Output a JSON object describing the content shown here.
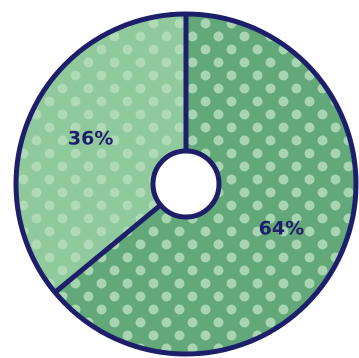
{
  "chart_data": {
    "type": "pie",
    "donut": true,
    "categories": [
      "",
      ""
    ],
    "values": [
      64,
      36
    ],
    "data_labels": [
      "64%",
      "36%"
    ],
    "colors": [
      "#62A878",
      "#8FC99C"
    ],
    "dot_color": "#B4DDBB",
    "outline_color": "#1E1F6B",
    "legend": "none"
  }
}
